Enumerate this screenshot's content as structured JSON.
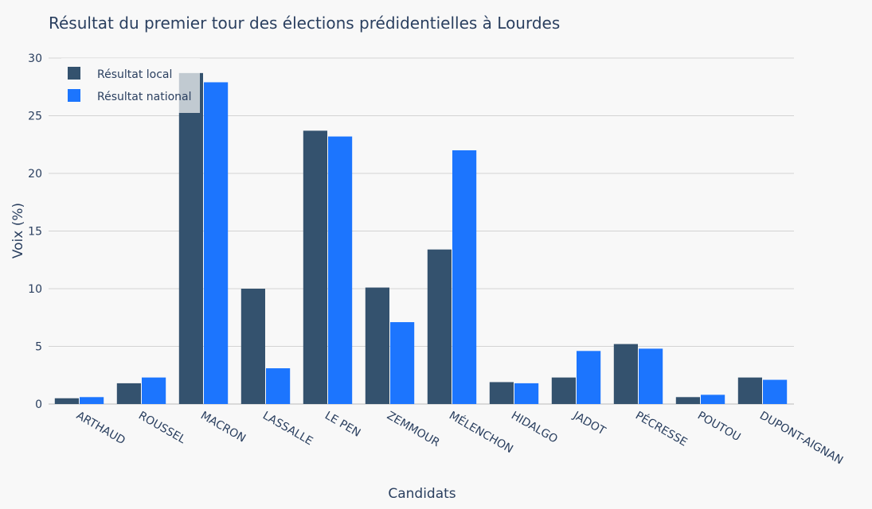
{
  "chart_data": {
    "type": "bar",
    "title": "Résultat du premier tour des élections prédidentielles à Lourdes",
    "xlabel": "Candidats",
    "ylabel": "Voix (%)",
    "ylim": [
      0,
      30
    ],
    "yticks": [
      0,
      5,
      10,
      15,
      20,
      25,
      30
    ],
    "grid": true,
    "legend_position": "top-left",
    "categories": [
      "ARTHAUD",
      "ROUSSEL",
      "MACRON",
      "LASSALLE",
      "LE PEN",
      "ZEMMOUR",
      "MÉLENCHON",
      "HIDALGO",
      "JADOT",
      "PÉCRESSE",
      "POUTOU",
      "DUPONT-AIGNAN"
    ],
    "series": [
      {
        "name": "Résultat local",
        "color": "#34526e",
        "values": [
          0.5,
          1.8,
          28.7,
          10.0,
          23.7,
          10.1,
          13.4,
          1.9,
          2.3,
          5.2,
          0.6,
          2.3
        ]
      },
      {
        "name": "Résultat national",
        "color": "#1c75fe",
        "values": [
          0.6,
          2.3,
          27.9,
          3.1,
          23.2,
          7.1,
          22.0,
          1.8,
          4.6,
          4.8,
          0.8,
          2.1
        ]
      }
    ]
  }
}
